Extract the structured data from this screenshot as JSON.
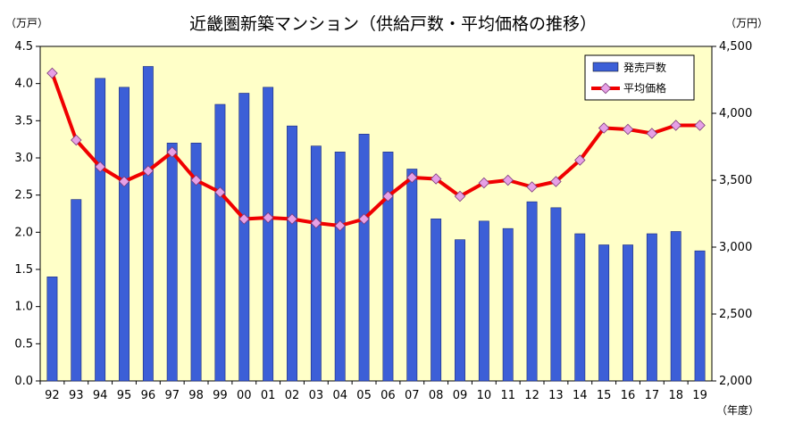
{
  "chart_data": {
    "type": "bar+line",
    "title": "近畿圏新築マンション（供給戸数・平均価格の推移）",
    "left_unit": "（万戸）",
    "right_unit": "（万円）",
    "x_unit": "（年度）",
    "categories": [
      "92",
      "93",
      "94",
      "95",
      "96",
      "97",
      "98",
      "99",
      "00",
      "01",
      "02",
      "03",
      "04",
      "05",
      "06",
      "07",
      "08",
      "09",
      "10",
      "11",
      "12",
      "13",
      "14",
      "15",
      "16",
      "17",
      "18",
      "19"
    ],
    "left_axis": {
      "min": 0,
      "max": 4.5,
      "ticks": [
        "0.0",
        "0.5",
        "1.0",
        "1.5",
        "2.0",
        "2.5",
        "3.0",
        "3.5",
        "4.0",
        "4.5"
      ]
    },
    "right_axis": {
      "min": 2000,
      "max": 4500,
      "ticks": [
        "2,000",
        "2,500",
        "3,000",
        "3,500",
        "4,000",
        "4,500"
      ]
    },
    "series": [
      {
        "name": "発売戸数",
        "kind": "bar",
        "axis": "left",
        "color": "#3c5fd7",
        "values": [
          1.4,
          2.44,
          4.07,
          3.95,
          4.23,
          3.2,
          3.2,
          3.72,
          3.87,
          3.95,
          3.43,
          3.16,
          3.08,
          3.32,
          3.08,
          2.85,
          2.18,
          1.9,
          2.15,
          2.05,
          2.41,
          2.33,
          1.98,
          1.83,
          1.83,
          1.98,
          2.01,
          1.75
        ]
      },
      {
        "name": "平均価格",
        "kind": "line",
        "axis": "right",
        "color": "#f00000",
        "marker_color": "#e6a0e6",
        "values": [
          4300,
          3800,
          3600,
          3490,
          3570,
          3710,
          3500,
          3410,
          3210,
          3220,
          3210,
          3180,
          3160,
          3210,
          3380,
          3520,
          3510,
          3380,
          3480,
          3500,
          3450,
          3490,
          3650,
          3890,
          3880,
          3850,
          3910,
          3910
        ]
      }
    ],
    "legend_position": "top-right",
    "plot_background": "#ffffc8",
    "grid": false
  }
}
